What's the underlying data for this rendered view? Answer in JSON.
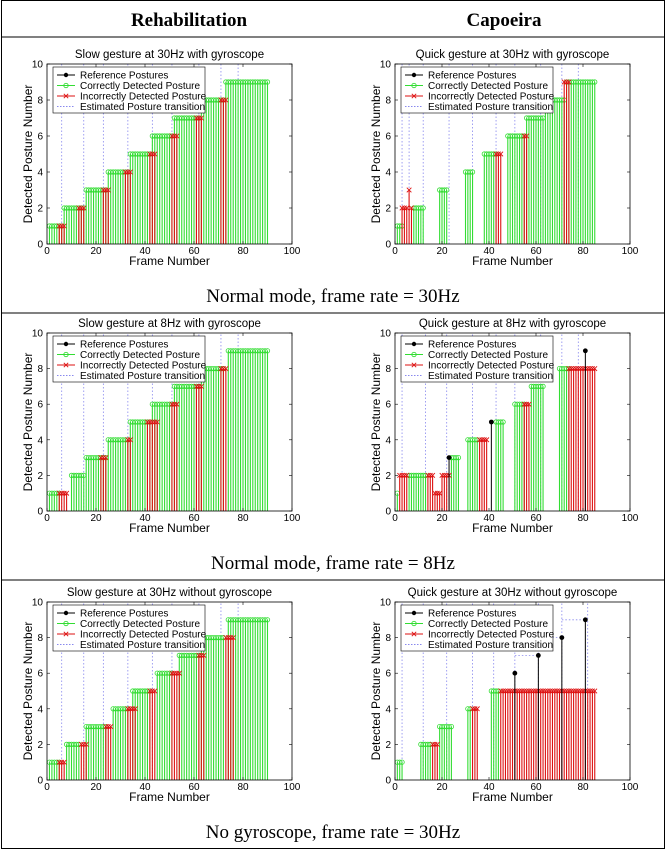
{
  "header": {
    "left": "Rehabilitation",
    "right": "Capoeira"
  },
  "captions": [
    "Normal mode, frame rate = 30Hz",
    "Normal mode, frame rate = 8Hz",
    "No gyroscope, frame rate = 30Hz"
  ],
  "colors": {
    "reference": "#000000",
    "correct": "#33dd33",
    "incorrect": "#dd1111",
    "transition": "#8888ee"
  },
  "legend": [
    "Reference Postures",
    "Correctly Detected Posture",
    "Incorrectly Detected Posture",
    "Estimated Posture transition"
  ],
  "chart_data": [
    {
      "type": "stem",
      "title": "Slow gesture at 30Hz with gyroscope",
      "xlabel": "Frame Number",
      "ylabel": "Detected Posture Number",
      "xlim": [
        0,
        100
      ],
      "ylim": [
        0,
        10
      ],
      "xticks": [
        0,
        20,
        40,
        60,
        80,
        100
      ],
      "yticks": [
        0,
        2,
        4,
        6,
        8,
        10
      ],
      "transitions": [
        6,
        15,
        23,
        33,
        43,
        51,
        62,
        71,
        78
      ],
      "segments": [
        {
          "x0": 1,
          "x1": 6,
          "ref": 1,
          "correct": 1
        },
        {
          "x0": 7,
          "x1": 15,
          "ref": 2,
          "correct": 2
        },
        {
          "x0": 16,
          "x1": 24,
          "ref": 3,
          "correct": 3
        },
        {
          "x0": 25,
          "x1": 33,
          "ref": 4,
          "correct": 4
        },
        {
          "x0": 34,
          "x1": 42,
          "ref": 5,
          "correct": 5
        },
        {
          "x0": 43,
          "x1": 51,
          "ref": 6,
          "correct": 6
        },
        {
          "x0": 52,
          "x1": 62,
          "ref": 7,
          "correct": 7
        },
        {
          "x0": 63,
          "x1": 72,
          "ref": 8,
          "correct": 8
        },
        {
          "x0": 73,
          "x1": 90,
          "ref": 9,
          "correct": 9
        }
      ],
      "incorrect": [
        {
          "x0": 5,
          "x1": 7,
          "y": 1
        },
        {
          "x0": 13,
          "x1": 15,
          "y": 2
        },
        {
          "x0": 23,
          "x1": 25,
          "y": 3
        },
        {
          "x0": 32,
          "x1": 34,
          "y": 4
        },
        {
          "x0": 42,
          "x1": 44,
          "y": 5
        },
        {
          "x0": 51,
          "x1": 53,
          "y": 6
        },
        {
          "x0": 61,
          "x1": 63,
          "y": 7
        },
        {
          "x0": 71,
          "x1": 73,
          "y": 8
        }
      ]
    },
    {
      "type": "stem",
      "title": "Quick gesture at 30Hz with gyroscope",
      "xlabel": "Frame Number",
      "ylabel": "Detected Posture Number",
      "xlim": [
        0,
        100
      ],
      "ylim": [
        0,
        10
      ],
      "xticks": [
        0,
        20,
        40,
        60,
        80,
        100
      ],
      "yticks": [
        0,
        2,
        4,
        6,
        8,
        10
      ],
      "transitions": [
        3,
        6,
        12,
        23,
        33,
        43,
        51,
        62,
        71,
        78
      ],
      "segments": [
        {
          "x0": 1,
          "x1": 3,
          "ref": 1,
          "correct": 1
        },
        {
          "x0": 8,
          "x1": 12,
          "ref": 2,
          "correct": 2
        },
        {
          "x0": 19,
          "x1": 22,
          "ref": 3,
          "correct": 3
        },
        {
          "x0": 30,
          "x1": 33,
          "ref": 4,
          "correct": 4
        },
        {
          "x0": 38,
          "x1": 43,
          "ref": 5,
          "correct": 5
        },
        {
          "x0": 48,
          "x1": 55,
          "ref": 6,
          "correct": 6
        },
        {
          "x0": 56,
          "x1": 63,
          "ref": 7,
          "correct": 7
        },
        {
          "x0": 64,
          "x1": 72,
          "ref": 8,
          "correct": 8
        },
        {
          "x0": 73,
          "x1": 85,
          "ref": 9,
          "correct": 9
        }
      ],
      "incorrect": [
        {
          "x0": 3,
          "x1": 5,
          "y": 2
        },
        {
          "x0": 6,
          "x1": 6,
          "y": 3
        },
        {
          "x0": 7,
          "x1": 7,
          "y": 2
        },
        {
          "x0": 43,
          "x1": 45,
          "y": 5
        },
        {
          "x0": 55,
          "x1": 56,
          "y": 6
        },
        {
          "x0": 72,
          "x1": 74,
          "y": 9
        }
      ]
    },
    {
      "type": "stem",
      "title": "Slow gesture at 8Hz with gyroscope",
      "xlabel": "Frame Number",
      "ylabel": "Detected Posture Number",
      "xlim": [
        0,
        100
      ],
      "ylim": [
        0,
        10
      ],
      "xticks": [
        0,
        20,
        40,
        60,
        80,
        100
      ],
      "yticks": [
        0,
        2,
        4,
        6,
        8,
        10
      ],
      "transitions": [
        6,
        15,
        23,
        33,
        43,
        51,
        62,
        71,
        78
      ],
      "segments": [
        {
          "x0": 1,
          "x1": 5,
          "ref": 1,
          "correct": 1
        },
        {
          "x0": 10,
          "x1": 15,
          "ref": 2,
          "correct": 2
        },
        {
          "x0": 16,
          "x1": 24,
          "ref": 3,
          "correct": 3
        },
        {
          "x0": 25,
          "x1": 33,
          "ref": 4,
          "correct": 4
        },
        {
          "x0": 34,
          "x1": 42,
          "ref": 5,
          "correct": 5
        },
        {
          "x0": 43,
          "x1": 51,
          "ref": 6,
          "correct": 6
        },
        {
          "x0": 52,
          "x1": 62,
          "ref": 7,
          "correct": 7
        },
        {
          "x0": 63,
          "x1": 72,
          "ref": 8,
          "correct": 8
        },
        {
          "x0": 74,
          "x1": 90,
          "ref": 9,
          "correct": 9
        }
      ],
      "incorrect": [
        {
          "x0": 5,
          "x1": 8,
          "y": 1
        },
        {
          "x0": 22,
          "x1": 24,
          "y": 3
        },
        {
          "x0": 33,
          "x1": 34,
          "y": 4
        },
        {
          "x0": 41,
          "x1": 45,
          "y": 5
        },
        {
          "x0": 51,
          "x1": 53,
          "y": 6
        },
        {
          "x0": 61,
          "x1": 63,
          "y": 7
        },
        {
          "x0": 71,
          "x1": 73,
          "y": 8
        }
      ]
    },
    {
      "type": "stem",
      "title": "Quick gesture at 8Hz with gyroscope",
      "xlabel": "Frame Number",
      "ylabel": "Detected Posture Number",
      "xlim": [
        0,
        100
      ],
      "ylim": [
        0,
        10
      ],
      "xticks": [
        0,
        20,
        40,
        60,
        80,
        100
      ],
      "yticks": [
        0,
        2,
        4,
        6,
        8,
        10
      ],
      "transitions": [
        3,
        13,
        22,
        33,
        43,
        51,
        62,
        71,
        78
      ],
      "segments": [
        {
          "x0": 1,
          "x1": 1,
          "ref": 1,
          "correct": 1
        },
        {
          "x0": 6,
          "x1": 13,
          "ref": 2,
          "correct": 2
        },
        {
          "x0": 24,
          "x1": 27,
          "ref": 3,
          "correct": 3
        },
        {
          "x0": 31,
          "x1": 35,
          "ref": 4,
          "correct": 4
        },
        {
          "x0": 43,
          "x1": 46,
          "ref": 5,
          "correct": 5
        },
        {
          "x0": 51,
          "x1": 55,
          "ref": 6,
          "correct": 6
        },
        {
          "x0": 58,
          "x1": 63,
          "ref": 7,
          "correct": 7
        },
        {
          "x0": 70,
          "x1": 74,
          "ref": 8,
          "correct": 8
        }
      ],
      "incorrect": [
        {
          "x0": 2,
          "x1": 5,
          "y": 2
        },
        {
          "x0": 14,
          "x1": 16,
          "y": 2
        },
        {
          "x0": 17,
          "x1": 19,
          "y": 1
        },
        {
          "x0": 20,
          "x1": 23,
          "y": 2
        },
        {
          "x0": 36,
          "x1": 39,
          "y": 4
        },
        {
          "x0": 55,
          "x1": 57,
          "y": 6
        },
        {
          "x0": 74,
          "x1": 85,
          "y": 8
        }
      ],
      "refMarkers": [
        {
          "x": 23,
          "y": 3
        },
        {
          "x": 41,
          "y": 5
        },
        {
          "x": 81,
          "y": 9
        }
      ]
    },
    {
      "type": "stem",
      "title": "Slow gesture at 30Hz without gyroscope",
      "xlabel": "Frame Number",
      "ylabel": "Detected Posture Number",
      "xlim": [
        0,
        100
      ],
      "ylim": [
        0,
        10
      ],
      "xticks": [
        0,
        20,
        40,
        60,
        80,
        100
      ],
      "yticks": [
        0,
        2,
        4,
        6,
        8,
        10
      ],
      "transitions": [
        6,
        15,
        23,
        33,
        43,
        51,
        62,
        71,
        78
      ],
      "segments": [
        {
          "x0": 1,
          "x1": 5,
          "ref": 1,
          "correct": 1
        },
        {
          "x0": 8,
          "x1": 13,
          "ref": 2,
          "correct": 2
        },
        {
          "x0": 16,
          "x1": 24,
          "ref": 3,
          "correct": 3
        },
        {
          "x0": 27,
          "x1": 33,
          "ref": 4,
          "correct": 4
        },
        {
          "x0": 35,
          "x1": 42,
          "ref": 5,
          "correct": 5
        },
        {
          "x0": 45,
          "x1": 51,
          "ref": 6,
          "correct": 6
        },
        {
          "x0": 54,
          "x1": 62,
          "ref": 7,
          "correct": 7
        },
        {
          "x0": 63,
          "x1": 72,
          "ref": 8,
          "correct": 8
        },
        {
          "x0": 74,
          "x1": 90,
          "ref": 9,
          "correct": 9
        }
      ],
      "incorrect": [
        {
          "x0": 5,
          "x1": 7,
          "y": 1
        },
        {
          "x0": 14,
          "x1": 16,
          "y": 2
        },
        {
          "x0": 24,
          "x1": 26,
          "y": 3
        },
        {
          "x0": 33,
          "x1": 36,
          "y": 4
        },
        {
          "x0": 42,
          "x1": 44,
          "y": 5
        },
        {
          "x0": 51,
          "x1": 54,
          "y": 6
        },
        {
          "x0": 62,
          "x1": 64,
          "y": 7
        },
        {
          "x0": 73,
          "x1": 76,
          "y": 8
        }
      ]
    },
    {
      "type": "stem",
      "title": "Quick gesture at 30Hz without gyroscope",
      "xlabel": "Frame Number",
      "ylabel": "Detected Posture Number",
      "xlim": [
        0,
        100
      ],
      "ylim": [
        0,
        10
      ],
      "xticks": [
        0,
        20,
        40,
        60,
        80,
        100
      ],
      "yticks": [
        0,
        2,
        4,
        6,
        8,
        10
      ],
      "transitions": [
        3,
        12,
        22,
        33,
        42,
        51,
        61,
        71,
        82
      ],
      "segments": [
        {
          "x0": 1,
          "x1": 3,
          "ref": 1,
          "correct": 1
        },
        {
          "x0": 11,
          "x1": 15,
          "ref": 2,
          "correct": 2
        },
        {
          "x0": 19,
          "x1": 24,
          "ref": 3,
          "correct": 3
        },
        {
          "x0": 31,
          "x1": 32,
          "ref": 4,
          "correct": 4
        },
        {
          "x0": 41,
          "x1": 44,
          "ref": 5,
          "correct": 5
        }
      ],
      "incorrect": [
        {
          "x0": 16,
          "x1": 18,
          "y": 2
        },
        {
          "x0": 33,
          "x1": 35,
          "y": 4
        },
        {
          "x0": 45,
          "x1": 85,
          "y": 5
        }
      ],
      "refMarkers": [
        {
          "x": 51,
          "y": 6
        },
        {
          "x": 61,
          "y": 7
        },
        {
          "x": 71,
          "y": 8
        },
        {
          "x": 81,
          "y": 9
        }
      ],
      "refRanges": [
        {
          "x0": 51,
          "x1": 61,
          "y": 6
        },
        {
          "x0": 61,
          "x1": 71,
          "y": 7
        },
        {
          "x0": 71,
          "x1": 81,
          "y": 8
        }
      ]
    }
  ]
}
